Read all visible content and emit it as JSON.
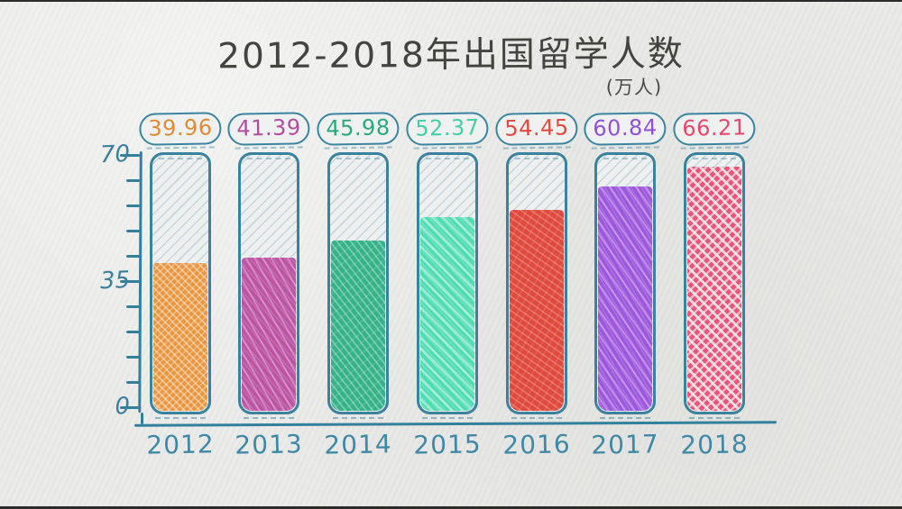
{
  "title": "2012-2018年出国留学人数",
  "unit_label": "(万人)",
  "y_axis": {
    "tick_labels": [
      "70",
      "35",
      "0"
    ]
  },
  "chart_data": {
    "type": "bar",
    "title": "2012-2018年出国留学人数",
    "unit": "万人",
    "categories": [
      "2012",
      "2013",
      "2014",
      "2015",
      "2016",
      "2017",
      "2018"
    ],
    "values": [
      39.96,
      41.39,
      45.98,
      52.37,
      54.45,
      60.84,
      66.21
    ],
    "value_labels": [
      "39.96",
      "41.39",
      "45.98",
      "52.37",
      "54.45",
      "60.84",
      "66.21"
    ],
    "xlabel": "",
    "ylabel": "",
    "ylim": [
      0,
      70
    ],
    "yticks": [
      0,
      35,
      70
    ],
    "minor_tick_step": 7,
    "grid": false,
    "legend_position": "none",
    "style": "hand-drawn crayon tubes on paper",
    "axis_color": "#33809d",
    "paper_color": "#eaeae8",
    "bar_colors": [
      "#e8963f",
      "#bc53a3",
      "#35b288",
      "#4fdcb2",
      "#df4a3c",
      "#9d57dd",
      "#ea547a"
    ],
    "label_colors": [
      "#e08b33",
      "#b14d9e",
      "#2ba87e",
      "#43cfa8",
      "#e04a3e",
      "#9150d8",
      "#e5486d"
    ]
  }
}
